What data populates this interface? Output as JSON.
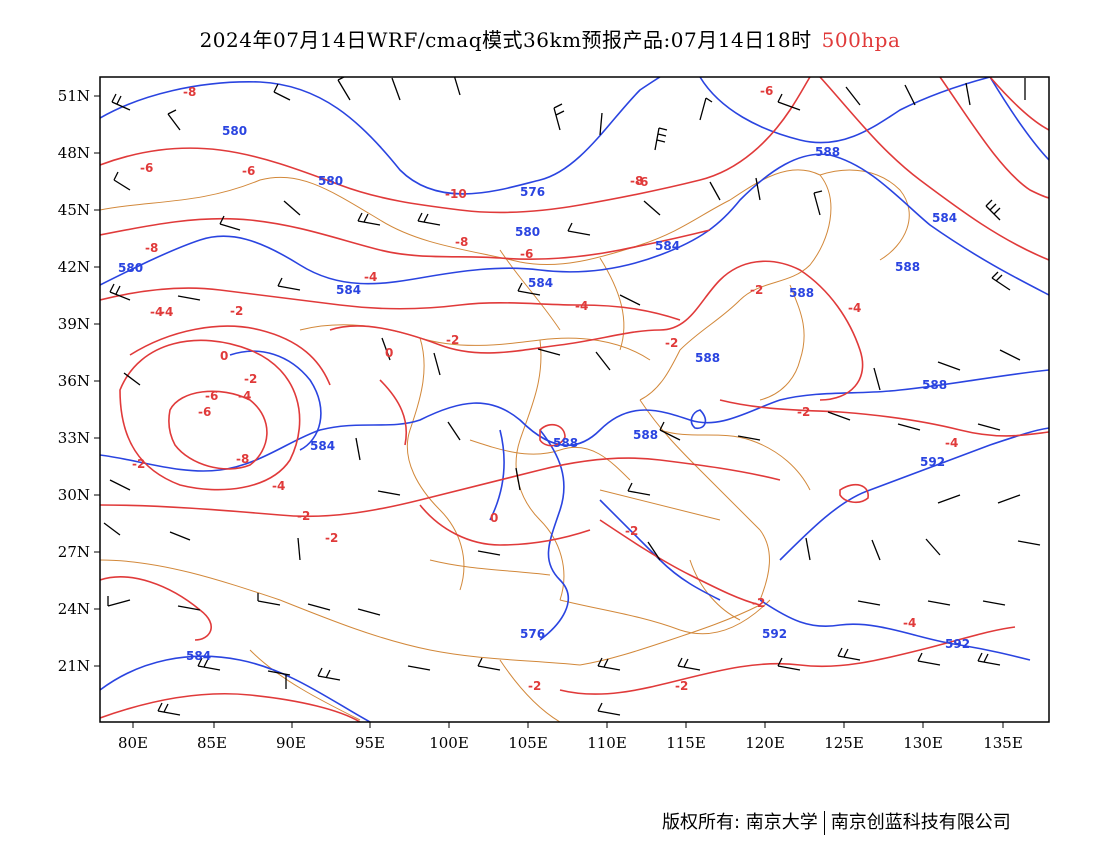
{
  "title": {
    "main": "2024年07月14日WRF/cmaq模式36km预报产品:07月14日18时",
    "level": "500hpa"
  },
  "colors": {
    "height_contour": "#2a44e0",
    "temp_contour": "#e03a3a",
    "boundary": "#d2883a",
    "wind_barb": "#000000"
  },
  "axes": {
    "lon_ticks": [
      "80E",
      "85E",
      "90E",
      "95E",
      "100E",
      "105E",
      "110E",
      "115E",
      "120E",
      "125E",
      "130E",
      "135E"
    ],
    "lat_ticks": [
      "51N",
      "48N",
      "45N",
      "42N",
      "39N",
      "36N",
      "33N",
      "30N",
      "27N",
      "24N",
      "21N"
    ]
  },
  "height_labels": [
    "580",
    "580",
    "580",
    "576",
    "580",
    "584",
    "584",
    "584",
    "584",
    "588",
    "588",
    "588",
    "584",
    "588",
    "588",
    "588",
    "588",
    "592",
    "592",
    "592",
    "584",
    "576"
  ],
  "temp_labels": [
    "-8",
    "-6",
    "-6",
    "-8",
    "-10",
    "-8",
    "-8",
    "-6",
    "-6",
    "-4",
    "-4",
    "-2",
    "-2",
    "0",
    "-2",
    "-4",
    "-2",
    "-2",
    "-4",
    "-2",
    "-4",
    "-4",
    "-2",
    "0",
    "0",
    "-2",
    "-2",
    "-2",
    "-4",
    "-2",
    "-6",
    "-8",
    "-6",
    "-4",
    "-2",
    "-6",
    "-2",
    "-4"
  ],
  "footer": {
    "left": "版权所有: 南京大学",
    "right": "南京创蓝科技有限公司"
  }
}
